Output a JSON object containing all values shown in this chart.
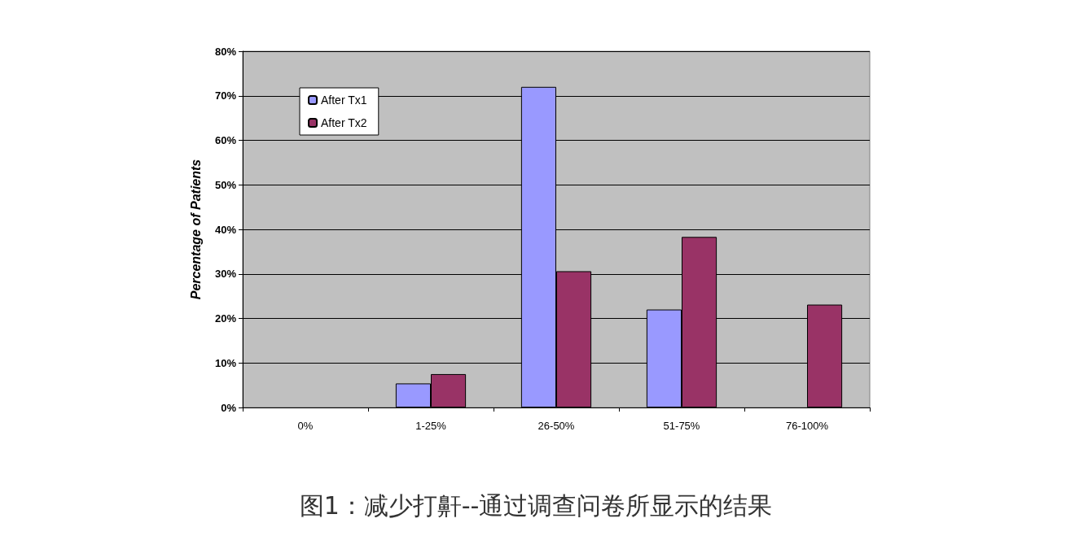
{
  "chart_data": {
    "type": "bar",
    "ylabel": "Percentage of Patients",
    "categories": [
      "0%",
      "1-25%",
      "26-50%",
      "51-75%",
      "76-100%"
    ],
    "series": [
      {
        "name": "After Tx1",
        "color": "#9999ff",
        "values": [
          0,
          5.4,
          72,
          22,
          0
        ]
      },
      {
        "name": "After Tx2",
        "color": "#993366",
        "values": [
          0,
          7.5,
          30.6,
          38.3,
          23.1
        ]
      }
    ],
    "ylim": [
      0,
      80
    ],
    "yticks": [
      {
        "value": 0,
        "label": "0%"
      },
      {
        "value": 10,
        "label": "10%"
      },
      {
        "value": 20,
        "label": "20%"
      },
      {
        "value": 30,
        "label": "30%"
      },
      {
        "value": 40,
        "label": "40%"
      },
      {
        "value": 50,
        "label": "50%"
      },
      {
        "value": 60,
        "label": "60%"
      },
      {
        "value": 70,
        "label": "70%"
      },
      {
        "value": 80,
        "label": "80%"
      }
    ],
    "grid": "y",
    "legend": "top left",
    "annotations": [
      "图1：减少打鼾--通过调查问卷所显示的结果"
    ]
  }
}
